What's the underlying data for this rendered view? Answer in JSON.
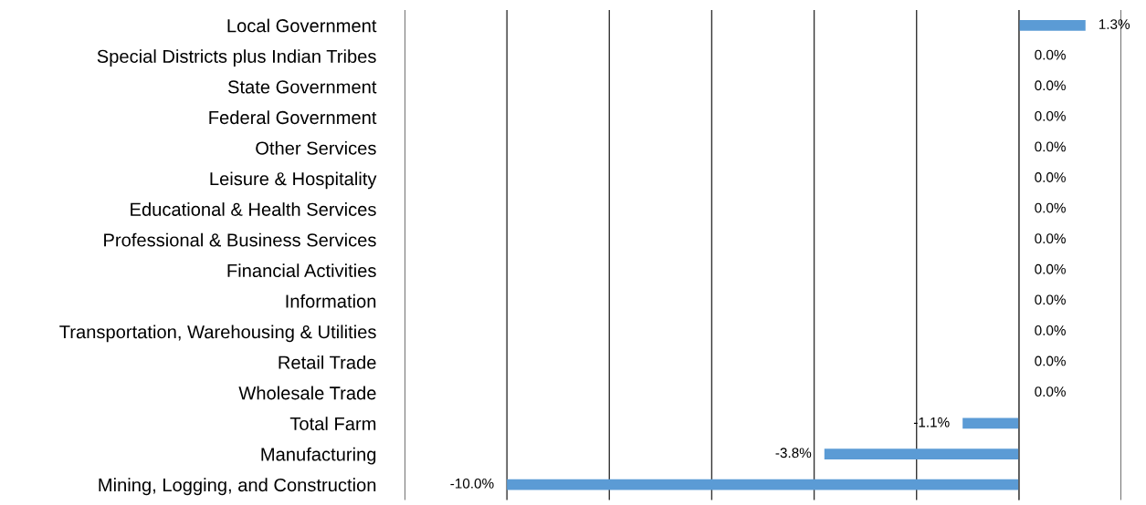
{
  "chart_data": {
    "type": "bar",
    "orientation": "horizontal",
    "categories": [
      "Local Government",
      "Special Districts plus Indian Tribes",
      "State Government",
      "Federal Government",
      "Other Services",
      "Leisure & Hospitality",
      "Educational & Health Services",
      "Professional & Business Services",
      "Financial Activities",
      "Information",
      "Transportation, Warehousing & Utilities",
      "Retail Trade",
      "Wholesale Trade",
      "Total Farm",
      "Manufacturing",
      "Mining, Logging, and Construction"
    ],
    "values": [
      1.3,
      0.0,
      0.0,
      0.0,
      0.0,
      0.0,
      0.0,
      0.0,
      0.0,
      0.0,
      0.0,
      0.0,
      0.0,
      -1.1,
      -3.8,
      -10.0
    ],
    "value_labels": [
      "1.3%",
      "0.0%",
      "0.0%",
      "0.0%",
      "0.0%",
      "0.0%",
      "0.0%",
      "0.0%",
      "0.0%",
      "0.0%",
      "0.0%",
      "0.0%",
      "0.0%",
      "-1.1%",
      "-3.8%",
      "-10.0%"
    ],
    "color": "#5b9bd5",
    "xlim": [
      -12,
      2
    ],
    "xticks": [
      {
        "value": -12,
        "label": null
      },
      {
        "value": -10,
        "label": null
      },
      {
        "value": -8,
        "label": null
      },
      {
        "value": -6,
        "label": null
      },
      {
        "value": -4,
        "label": null
      },
      {
        "value": -2,
        "label": null
      },
      {
        "value": 0,
        "label": null
      },
      {
        "value": 2,
        "label": null
      }
    ],
    "tick_labels": "y",
    "grid": "x"
  }
}
